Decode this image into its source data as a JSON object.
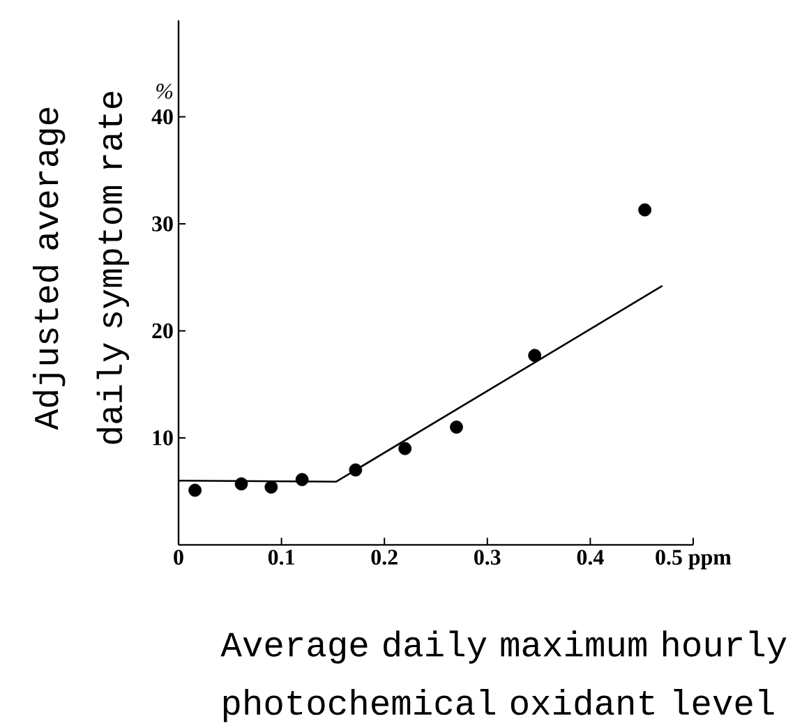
{
  "chart_data": {
    "type": "scatter",
    "xlabel": "Average daily maximum hourly photochemical oxidant level",
    "ylabel": "Adjusted average daily symptom rate",
    "annotations": [
      "%"
    ],
    "xlim": [
      0,
      0.5
    ],
    "ylim": [
      0,
      49
    ],
    "xticks": [
      0,
      0.1,
      0.2,
      0.3,
      0.4,
      {
        "value": 0.5,
        "label": "0.5 ppm"
      }
    ],
    "yticks": [
      10,
      20,
      30,
      40
    ],
    "series": [
      {
        "marker": "circle",
        "color": "#000000",
        "x": [
          0.016,
          0.061,
          0.09,
          0.12,
          0.172,
          0.22,
          0.27,
          0.346,
          0.453
        ],
        "values": [
          5.1,
          5.7,
          5.4,
          6.1,
          7.0,
          9.0,
          11.0,
          17.7,
          31.3
        ]
      },
      {
        "type": "line",
        "marker": "none",
        "line_style": "solid",
        "color": "#000000",
        "x": [
          0,
          0.153,
          0.47
        ],
        "values": [
          6,
          5.9,
          24.2
        ]
      }
    ]
  }
}
